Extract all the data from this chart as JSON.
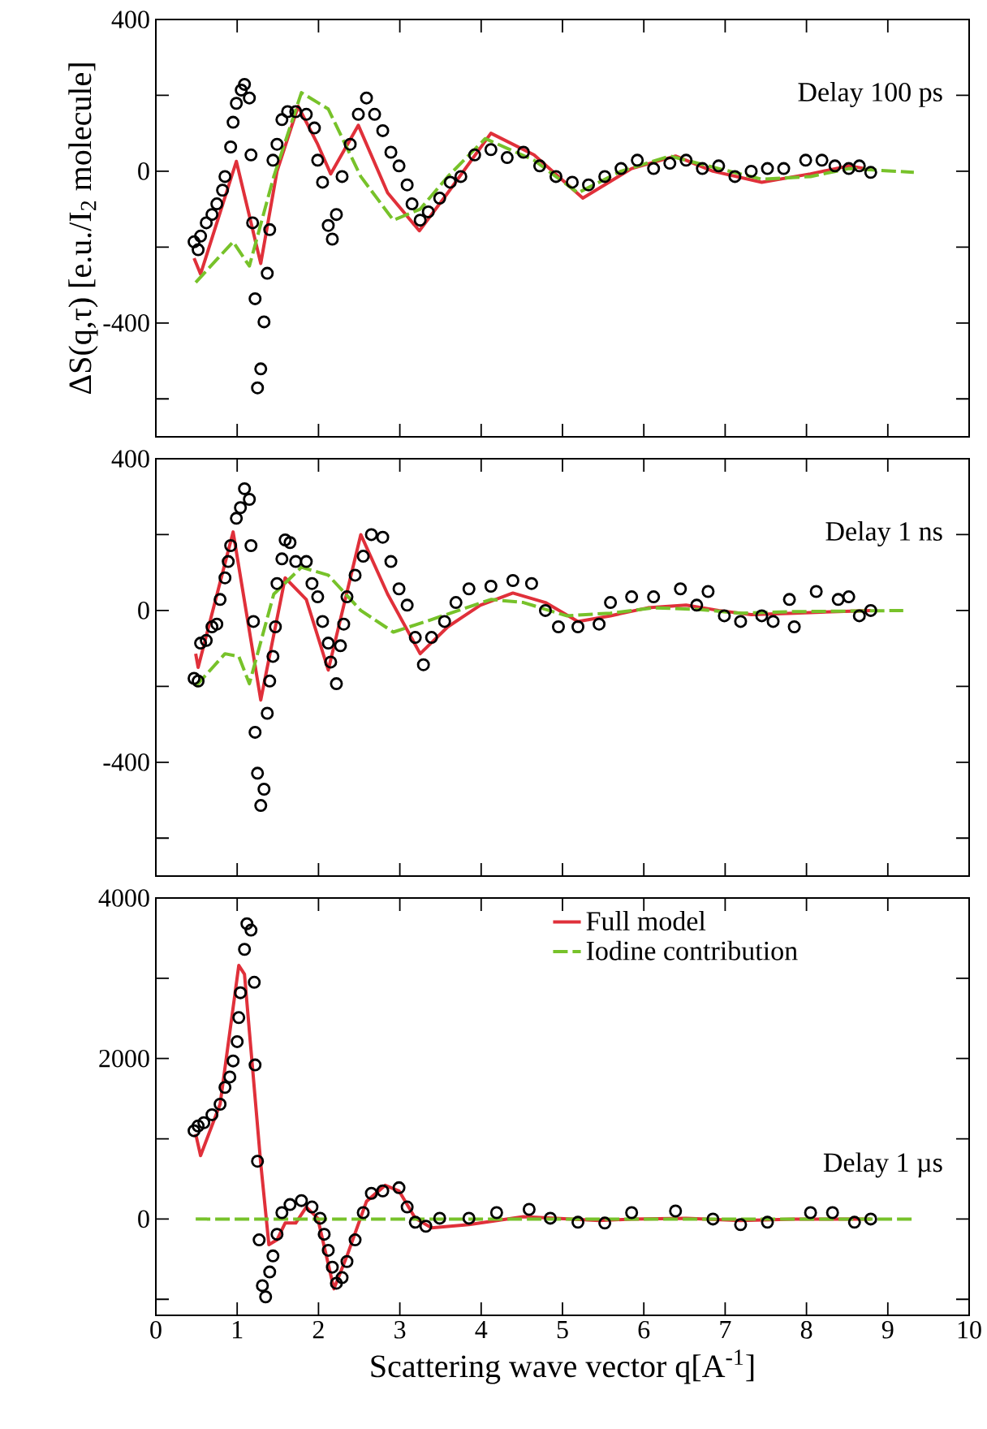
{
  "chart_data": [
    {
      "type": "scatter",
      "annotations": [
        "Delay 100 ps"
      ],
      "xlim": [
        0,
        10
      ],
      "ylim": [
        -700,
        400
      ],
      "xticks": [
        0,
        1,
        2,
        3,
        4,
        5,
        6,
        7,
        8,
        9,
        10
      ],
      "yticks": [
        400,
        {
          "value": 200,
          "label": null
        },
        0,
        {
          "value": -200,
          "label": null
        },
        -400,
        {
          "value": -600,
          "label": null
        }
      ],
      "tick_labels": "y",
      "ylabel": "ΔS(q,τ) [e.u./I$_{2}$ molecule]",
      "series": [
        {
          "marker": "circle",
          "color": "#000000",
          "x": [
            0.47,
            0.52,
            0.55,
            0.62,
            0.69,
            0.75,
            0.82,
            0.85,
            0.92,
            0.95,
            0.99,
            1.05,
            1.09,
            1.15,
            1.17,
            1.19,
            1.22,
            1.25,
            1.29,
            1.33,
            1.37,
            1.4,
            1.44,
            1.49,
            1.55,
            1.62,
            1.72,
            1.85,
            1.95,
            1.99,
            2.05,
            2.12,
            2.17,
            2.22,
            2.29,
            2.39,
            2.49,
            2.59,
            2.69,
            2.79,
            2.89,
            2.99,
            3.09,
            3.15,
            3.25,
            3.35,
            3.49,
            3.62,
            3.75,
            3.92,
            4.12,
            4.32,
            4.52,
            4.72,
            4.92,
            5.12,
            5.32,
            5.52,
            5.72,
            5.92,
            6.12,
            6.32,
            6.52,
            6.72,
            6.92,
            7.12,
            7.32,
            7.52,
            7.72,
            7.99,
            8.19,
            8.35,
            8.52,
            8.65,
            8.79
          ],
          "values": [
            -186,
            -207,
            -171,
            -136,
            -114,
            -86,
            -50,
            -14,
            64,
            129,
            179,
            214,
            229,
            193,
            43,
            -136,
            -336,
            -571,
            -521,
            -397,
            -269,
            -154,
            29,
            71,
            136,
            157,
            157,
            150,
            114,
            29,
            -29,
            -143,
            -179,
            -114,
            -14,
            71,
            150,
            193,
            150,
            107,
            50,
            14,
            -36,
            -86,
            -129,
            -107,
            -71,
            -29,
            -14,
            43,
            57,
            36,
            50,
            14,
            -14,
            -29,
            -36,
            -14,
            7,
            29,
            7,
            21,
            29,
            7,
            14,
            -14,
            0,
            7,
            7,
            29,
            29,
            14,
            7,
            14,
            -3
          ]
        },
        {
          "type": "line",
          "color": "#e0303a",
          "x": [
            0.47,
            0.55,
            0.99,
            1.29,
            1.49,
            1.75,
            1.99,
            2.15,
            2.49,
            2.85,
            3.24,
            3.59,
            4.12,
            4.65,
            5.25,
            5.85,
            6.39,
            6.85,
            7.45,
            8.05,
            8.52,
            8.72
          ],
          "values": [
            -229,
            -271,
            26,
            -243,
            0,
            171,
            71,
            -7,
            121,
            -57,
            -157,
            -57,
            100,
            43,
            -71,
            7,
            40,
            0,
            -29,
            -7,
            14,
            7
          ]
        },
        {
          "type": "line",
          "line_style": "dashed",
          "color": "#77c22a",
          "x": [
            0.49,
            0.95,
            1.15,
            1.45,
            1.79,
            2.12,
            2.52,
            2.92,
            3.25,
            3.59,
            4.05,
            4.65,
            5.19,
            5.72,
            6.32,
            6.92,
            7.45,
            8.05,
            8.52,
            9.32
          ],
          "values": [
            -293,
            -186,
            -250,
            -14,
            207,
            164,
            -14,
            -129,
            -100,
            -14,
            86,
            29,
            -57,
            0,
            40,
            7,
            -21,
            -14,
            7,
            -3
          ]
        }
      ]
    },
    {
      "type": "scatter",
      "annotations": [
        "Delay 1 ns"
      ],
      "xlim": [
        0,
        10
      ],
      "ylim": [
        -700,
        400
      ],
      "xticks": [
        0,
        1,
        2,
        3,
        4,
        5,
        6,
        7,
        8,
        9,
        10
      ],
      "yticks": [
        400,
        {
          "value": 200,
          "label": null
        },
        0,
        {
          "value": -200,
          "label": null
        },
        -400,
        {
          "value": -600,
          "label": null
        }
      ],
      "tick_labels": "y",
      "series": [
        {
          "marker": "circle",
          "color": "#000000",
          "x": [
            0.47,
            0.52,
            0.55,
            0.62,
            0.69,
            0.75,
            0.79,
            0.85,
            0.89,
            0.92,
            0.99,
            1.04,
            1.09,
            1.15,
            1.17,
            1.2,
            1.22,
            1.25,
            1.29,
            1.33,
            1.37,
            1.4,
            1.44,
            1.47,
            1.49,
            1.55,
            1.59,
            1.65,
            1.72,
            1.85,
            1.92,
            1.99,
            2.05,
            2.12,
            2.15,
            2.22,
            2.27,
            2.31,
            2.35,
            2.45,
            2.55,
            2.65,
            2.79,
            2.89,
            2.99,
            3.09,
            3.19,
            3.29,
            3.39,
            3.55,
            3.69,
            3.85,
            4.12,
            4.39,
            4.62,
            4.79,
            4.95,
            5.19,
            5.45,
            5.59,
            5.85,
            6.12,
            6.45,
            6.65,
            6.79,
            6.99,
            7.19,
            7.45,
            7.59,
            7.79,
            7.85,
            8.12,
            8.39,
            8.52,
            8.65,
            8.79
          ],
          "values": [
            -179,
            -186,
            -86,
            -79,
            -43,
            -36,
            29,
            86,
            129,
            171,
            243,
            271,
            321,
            293,
            171,
            -29,
            -321,
            -429,
            -514,
            -471,
            -271,
            -186,
            -121,
            -43,
            71,
            136,
            186,
            179,
            129,
            129,
            71,
            36,
            -29,
            -86,
            -136,
            -193,
            -93,
            -36,
            36,
            93,
            143,
            200,
            193,
            129,
            57,
            14,
            -71,
            -143,
            -71,
            -29,
            21,
            57,
            64,
            79,
            71,
            0,
            -43,
            -43,
            -36,
            21,
            36,
            36,
            57,
            14,
            50,
            -14,
            -29,
            -14,
            -29,
            29,
            -43,
            50,
            29,
            36,
            -14,
            0
          ]
        },
        {
          "type": "line",
          "color": "#e0303a",
          "x": [
            0.49,
            0.52,
            0.95,
            1.29,
            1.59,
            1.85,
            2.12,
            2.52,
            2.85,
            3.25,
            3.59,
            3.99,
            4.39,
            4.79,
            5.19,
            5.59,
            6.05,
            6.52,
            6.92,
            7.32,
            7.85,
            8.79
          ],
          "values": [
            -114,
            -150,
            207,
            -236,
            86,
            29,
            -157,
            200,
            43,
            -114,
            -43,
            14,
            46,
            21,
            -29,
            -14,
            7,
            14,
            0,
            -11,
            -7,
            0
          ]
        },
        {
          "type": "line",
          "line_style": "dashed",
          "color": "#77c22a",
          "x": [
            0.49,
            0.85,
            1.02,
            1.15,
            1.45,
            1.79,
            2.12,
            2.52,
            2.92,
            3.32,
            3.72,
            4.12,
            4.52,
            5.05,
            5.59,
            6.12,
            6.65,
            7.19,
            7.85,
            9.19
          ],
          "values": [
            -200,
            -114,
            -121,
            -193,
            43,
            114,
            93,
            0,
            -57,
            -29,
            0,
            29,
            21,
            -14,
            -7,
            7,
            3,
            -7,
            -3,
            0
          ]
        }
      ]
    },
    {
      "type": "scatter",
      "annotations": [
        "Delay 1 µs"
      ],
      "xlim": [
        0,
        10
      ],
      "ylim": [
        -1200,
        4000
      ],
      "xticks": [
        0,
        1,
        2,
        3,
        4,
        5,
        6,
        7,
        8,
        9,
        10
      ],
      "yticks": [
        4000,
        {
          "value": 3000,
          "label": null
        },
        2000,
        {
          "value": 1000,
          "label": null
        },
        0,
        {
          "value": -1000,
          "label": null
        }
      ],
      "xlabel": "Scattering wave vector q[A$^{-1}$]",
      "legend": "top",
      "series": [
        {
          "marker": "circle",
          "color": "#000000",
          "x": [
            0.47,
            0.52,
            0.59,
            0.69,
            0.79,
            0.85,
            0.91,
            0.95,
            1.0,
            1.02,
            1.04,
            1.09,
            1.12,
            1.17,
            1.21,
            1.22,
            1.25,
            1.27,
            1.31,
            1.35,
            1.4,
            1.44,
            1.49,
            1.55,
            1.65,
            1.79,
            1.92,
            2.02,
            2.07,
            2.12,
            2.17,
            2.22,
            2.29,
            2.35,
            2.45,
            2.55,
            2.65,
            2.79,
            2.99,
            3.09,
            3.19,
            3.32,
            3.49,
            3.85,
            4.19,
            4.59,
            4.85,
            5.19,
            5.52,
            5.85,
            6.39,
            6.85,
            7.19,
            7.52,
            8.05,
            8.32,
            8.59,
            8.79
          ],
          "values": [
            1100,
            1160,
            1200,
            1300,
            1430,
            1640,
            1770,
            1970,
            2210,
            2510,
            2820,
            3360,
            3680,
            3600,
            2950,
            1920,
            720,
            -260,
            -830,
            -970,
            -660,
            -460,
            -190,
            80,
            180,
            230,
            150,
            10,
            -190,
            -390,
            -600,
            -800,
            -730,
            -530,
            -260,
            80,
            320,
            350,
            390,
            150,
            -40,
            -90,
            10,
            10,
            80,
            120,
            10,
            -40,
            -50,
            80,
            100,
            0,
            -70,
            -40,
            80,
            80,
            -40,
            0
          ]
        },
        {
          "type": "line",
          "name": "Full model",
          "color": "#e0303a",
          "x": [
            0.49,
            0.55,
            0.79,
            1.02,
            1.09,
            1.29,
            1.39,
            1.49,
            1.59,
            1.72,
            1.85,
            1.99,
            2.19,
            2.35,
            2.59,
            2.82,
            2.99,
            3.19,
            3.39,
            3.85,
            4.52,
            4.92,
            5.45,
            5.85,
            6.52,
            7.19,
            7.85,
            8.79
          ],
          "values": [
            1060,
            790,
            1430,
            3160,
            3050,
            690,
            -320,
            -260,
            -50,
            -50,
            150,
            10,
            -870,
            -460,
            220,
            420,
            350,
            10,
            -110,
            -70,
            30,
            10,
            -20,
            0,
            10,
            -20,
            0,
            0
          ]
        },
        {
          "type": "line",
          "name": "Iodine contribution",
          "line_style": "dashed",
          "color": "#77c22a",
          "x": [
            0.49,
            9.32
          ],
          "values": [
            0,
            0
          ]
        }
      ]
    }
  ]
}
